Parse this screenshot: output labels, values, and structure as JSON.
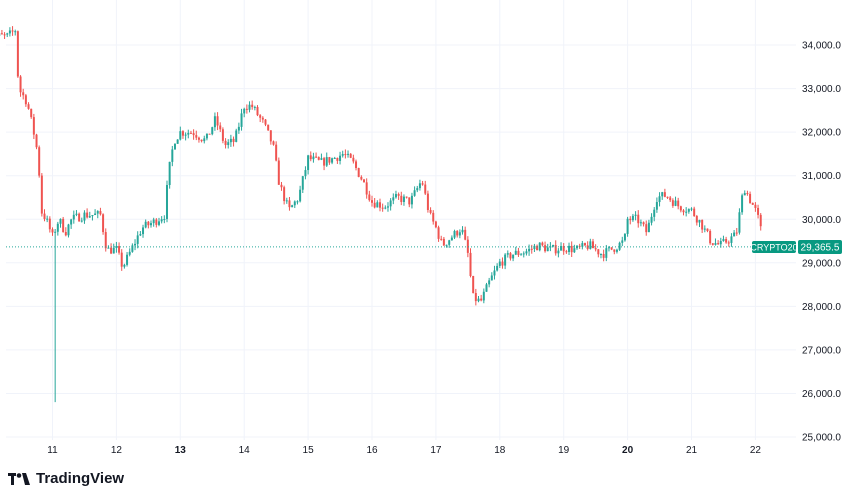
{
  "branding": {
    "logo_text": "TradingView",
    "logo_icon": "tradingview-logo-icon"
  },
  "colors": {
    "up": "#26a69a",
    "down": "#ef5350",
    "grid": "#f0f3fa",
    "label_bg": "#089981"
  },
  "chart_data": {
    "type": "candlestick",
    "ylim": [
      24900,
      35000
    ],
    "y_ticks": [
      25000,
      26000,
      27000,
      28000,
      29000,
      30000,
      31000,
      32000,
      33000,
      34000
    ],
    "y_tick_labels": [
      "25,000.0",
      "26,000.0",
      "27,000.0",
      "28,000.0",
      "29,000.0",
      "30,000.0",
      "31,000.0",
      "32,000.0",
      "33,000.0",
      "34,000.0"
    ],
    "x_range": [
      10.0,
      22.55
    ],
    "x_ticks": [
      {
        "label": "11",
        "x": 11,
        "bold": false
      },
      {
        "label": "12",
        "x": 12,
        "bold": false
      },
      {
        "label": "13",
        "x": 13,
        "bold": true
      },
      {
        "label": "14",
        "x": 14,
        "bold": false
      },
      {
        "label": "15",
        "x": 15,
        "bold": false
      },
      {
        "label": "16",
        "x": 16,
        "bold": false
      },
      {
        "label": "17",
        "x": 17,
        "bold": false
      },
      {
        "label": "18",
        "x": 18,
        "bold": false
      },
      {
        "label": "19",
        "x": 19,
        "bold": false
      },
      {
        "label": "20",
        "x": 20,
        "bold": true
      },
      {
        "label": "21",
        "x": 21,
        "bold": false
      },
      {
        "label": "22",
        "x": 22,
        "bold": false
      }
    ],
    "symbol_label": "CRYPTO20",
    "last_price": 29365.5,
    "last_price_label": "29,365.5",
    "close_anchors": [
      [
        10.0,
        34100
      ],
      [
        10.1,
        34200
      ],
      [
        10.3,
        34200
      ],
      [
        10.42,
        34350
      ],
      [
        10.47,
        33000
      ],
      [
        10.6,
        32700
      ],
      [
        10.72,
        31900
      ],
      [
        10.78,
        31400
      ],
      [
        10.82,
        30200
      ],
      [
        10.9,
        30000
      ],
      [
        11.0,
        29600
      ],
      [
        11.1,
        30000
      ],
      [
        11.2,
        29700
      ],
      [
        11.3,
        30000
      ],
      [
        11.5,
        30100
      ],
      [
        11.75,
        30100
      ],
      [
        11.85,
        29300
      ],
      [
        12.0,
        29300
      ],
      [
        12.1,
        28900
      ],
      [
        12.2,
        29200
      ],
      [
        12.4,
        29800
      ],
      [
        12.6,
        29950
      ],
      [
        12.75,
        30100
      ],
      [
        12.82,
        31100
      ],
      [
        12.9,
        31800
      ],
      [
        13.0,
        32000
      ],
      [
        13.2,
        32000
      ],
      [
        13.4,
        31800
      ],
      [
        13.55,
        32300
      ],
      [
        13.7,
        31700
      ],
      [
        13.85,
        31800
      ],
      [
        14.0,
        32600
      ],
      [
        14.12,
        32600
      ],
      [
        14.3,
        32200
      ],
      [
        14.45,
        31700
      ],
      [
        14.55,
        30800
      ],
      [
        14.7,
        30200
      ],
      [
        14.85,
        30500
      ],
      [
        15.0,
        31400
      ],
      [
        15.2,
        31300
      ],
      [
        15.4,
        31400
      ],
      [
        15.55,
        31500
      ],
      [
        15.7,
        31300
      ],
      [
        15.85,
        30900
      ],
      [
        16.0,
        30400
      ],
      [
        16.2,
        30300
      ],
      [
        16.4,
        30500
      ],
      [
        16.6,
        30400
      ],
      [
        16.78,
        30900
      ],
      [
        16.9,
        30100
      ],
      [
        17.0,
        29800
      ],
      [
        17.1,
        29400
      ],
      [
        17.25,
        29600
      ],
      [
        17.4,
        29800
      ],
      [
        17.5,
        29200
      ],
      [
        17.58,
        28200
      ],
      [
        17.7,
        28100
      ],
      [
        17.85,
        28600
      ],
      [
        18.0,
        29000
      ],
      [
        18.2,
        29200
      ],
      [
        18.4,
        29250
      ],
      [
        18.6,
        29400
      ],
      [
        18.8,
        29300
      ],
      [
        19.0,
        29350
      ],
      [
        19.2,
        29300
      ],
      [
        19.4,
        29400
      ],
      [
        19.6,
        29200
      ],
      [
        19.8,
        29350
      ],
      [
        19.95,
        29500
      ],
      [
        20.0,
        30000
      ],
      [
        20.15,
        30000
      ],
      [
        20.3,
        29700
      ],
      [
        20.45,
        30500
      ],
      [
        20.6,
        30550
      ],
      [
        20.8,
        30300
      ],
      [
        21.0,
        30200
      ],
      [
        21.15,
        29900
      ],
      [
        21.3,
        29500
      ],
      [
        21.45,
        29400
      ],
      [
        21.7,
        29650
      ],
      [
        21.82,
        30750
      ],
      [
        21.9,
        30500
      ],
      [
        22.0,
        30200
      ],
      [
        22.07,
        29900
      ],
      [
        22.12,
        29400
      ]
    ],
    "spike_low": [
      11.06,
      25800
    ]
  }
}
